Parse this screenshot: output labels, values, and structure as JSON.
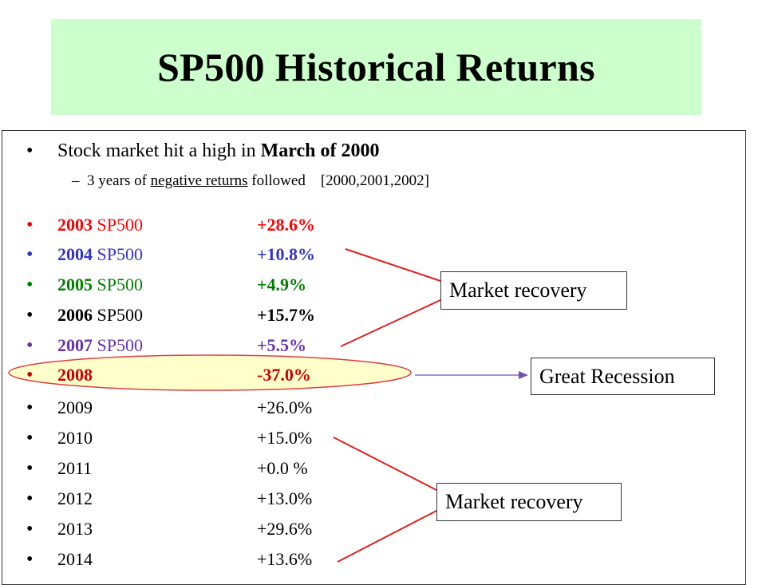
{
  "title": "SP500 Historical Returns",
  "intro": {
    "main_prefix": "Stock market hit a high in ",
    "main_bold": "March of 2000",
    "sub_dash": "–",
    "sub_prefix": "3 years of ",
    "sub_underline": "negative returns",
    "sub_suffix": " followed    [2000,2001,2002]"
  },
  "bullet_char": "•",
  "rows": [
    {
      "year": "2003",
      "index": " SP500",
      "pct": "+28.6%",
      "color": "#ff0000",
      "bold_year": true,
      "bold_pct": true
    },
    {
      "year": "2004",
      "index": " SP500",
      "pct": "+10.8%",
      "color": "#3333cc",
      "bold_year": true,
      "bold_pct": true
    },
    {
      "year": "2005",
      "index": " SP500",
      "pct": "+4.9%",
      "color": "#008000",
      "bold_year": true,
      "bold_pct": true
    },
    {
      "year": "2006",
      "index": " SP500",
      "pct": "+15.7%",
      "color": "#000000",
      "bold_year": true,
      "bold_pct": true
    },
    {
      "year": "2007",
      "index": " SP500",
      "pct": "+5.5%",
      "color": "#6633aa",
      "bold_year": true,
      "bold_pct": true
    },
    {
      "year": "2008",
      "index": "",
      "pct": "-37.0%",
      "color": "#cc0000",
      "bold_year": true,
      "bold_pct": true
    },
    {
      "year": "2009",
      "index": "",
      "pct": "+26.0%",
      "color": "#000000",
      "bold_year": false,
      "bold_pct": false
    },
    {
      "year": "2010",
      "index": "",
      "pct": "+15.0%",
      "color": "#000000",
      "bold_year": false,
      "bold_pct": false
    },
    {
      "year": "2011",
      "index": "",
      "pct": "+0.0 %",
      "color": "#000000",
      "bold_year": false,
      "bold_pct": false
    },
    {
      "year": "2012",
      "index": "",
      "pct": "+13.0%",
      "color": "#000000",
      "bold_year": false,
      "bold_pct": false
    },
    {
      "year": "2013",
      "index": "",
      "pct": "+29.6%",
      "color": "#000000",
      "bold_year": false,
      "bold_pct": false
    },
    {
      "year": "2014",
      "index": "",
      "pct": "+13.6%",
      "color": "#000000",
      "bold_year": false,
      "bold_pct": false
    }
  ],
  "callouts": {
    "recovery_1": "Market recovery",
    "recession": "Great Recession",
    "recovery_2": "Market recovery"
  },
  "colors": {
    "title_bg": "#ccffcc",
    "highlight_fill": "#ffffcc",
    "highlight_stroke": "#e04040",
    "connector_red": "#e02020",
    "arrow_purple": "#7050b0"
  }
}
